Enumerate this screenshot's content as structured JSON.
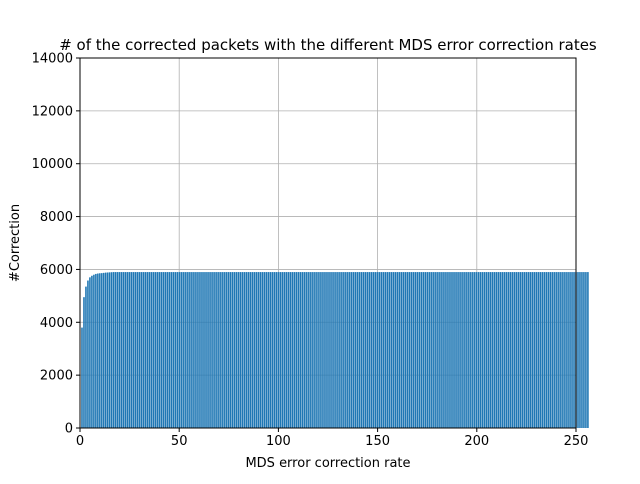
{
  "chart_data": {
    "type": "bar",
    "title": "# of the corrected packets with the different MDS error correction rates",
    "xlabel": "MDS error correction rate",
    "ylabel": "#Correction",
    "xlim": [
      0,
      250
    ],
    "ylim": [
      0,
      14000
    ],
    "xticks": [
      0,
      50,
      100,
      150,
      200,
      250
    ],
    "yticks": [
      0,
      2000,
      4000,
      6000,
      8000,
      10000,
      12000,
      14000
    ],
    "grid": true,
    "bar_color": "#1f77b4",
    "bar_width": 0.8,
    "x_start": 1,
    "values": [
      3800,
      4950,
      5350,
      5580,
      5700,
      5760,
      5800,
      5830,
      5845,
      5855,
      5860,
      5870,
      5880,
      5885,
      5890,
      5895,
      5900,
      5900,
      5900,
      5900,
      5900,
      5900,
      5900,
      5900,
      5900,
      5900,
      5900,
      5900,
      5900,
      5900,
      5900,
      5900,
      5900,
      5900,
      5900,
      5900,
      5900,
      5900,
      5900,
      5900,
      5900,
      5900,
      5900,
      5900,
      5900,
      5900,
      5900,
      5900,
      5900,
      5900,
      5900,
      5900,
      5900,
      5900,
      5900,
      5900,
      5900,
      5900,
      5900,
      5900,
      5900,
      5900,
      5900,
      5900,
      5900,
      5900,
      5900,
      5900,
      5900,
      5900,
      5900,
      5900,
      5900,
      5900,
      5900,
      5900,
      5900,
      5900,
      5900,
      5900,
      5900,
      5900,
      5900,
      5900,
      5900,
      5900,
      5900,
      5900,
      5900,
      5900,
      5900,
      5900,
      5900,
      5900,
      5900,
      5900,
      5900,
      5900,
      5900,
      5900,
      5900,
      5900,
      5900,
      5900,
      5900,
      5900,
      5900,
      5900,
      5900,
      5900,
      5900,
      5900,
      5900,
      5900,
      5900,
      5900,
      5900,
      5900,
      5900,
      5900,
      5900,
      5900,
      5900,
      5900,
      5900,
      5900,
      5900,
      5900,
      5900,
      5900,
      5900,
      5900,
      5900,
      5900,
      5900,
      5900,
      5900,
      5900,
      5900,
      5900,
      5900,
      5900,
      5900,
      5900,
      5900,
      5900,
      5900,
      5900,
      5900,
      5900,
      5900,
      5900,
      5900,
      5900,
      5900,
      5900,
      5900,
      5900,
      5900,
      5900,
      5900,
      5900,
      5900,
      5900,
      5900,
      5900,
      5900,
      5900,
      5900,
      5900,
      5900,
      5900,
      5900,
      5900,
      5900,
      5900,
      5900,
      5900,
      5900,
      5900,
      5900,
      5900,
      5900,
      5900,
      5900,
      5900,
      5900,
      5900,
      5900,
      5900,
      5900,
      5900,
      5900,
      5900,
      5900,
      5900,
      5900,
      5900,
      5900,
      5900,
      5900,
      5900,
      5900,
      5900,
      5900,
      5900,
      5900,
      5900,
      5900,
      5900,
      5900,
      5900,
      5900,
      5900,
      5900,
      5900,
      5900,
      5900,
      5900,
      5900,
      5900,
      5900,
      5900,
      5900,
      5900,
      5900,
      5900,
      5900,
      5900,
      5900,
      5900,
      5900,
      5900,
      5900,
      5900,
      5900,
      5900,
      5900,
      5900,
      5900,
      5900,
      5900,
      5900,
      5900,
      5900,
      5900,
      5900,
      5900,
      5900,
      5900,
      5900,
      5900,
      5900,
      5900,
      5900,
      5900
    ]
  }
}
